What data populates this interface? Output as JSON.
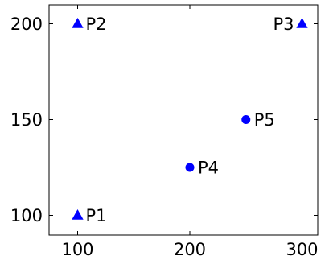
{
  "chart_data": {
    "type": "scatter",
    "title": "",
    "xlabel": "",
    "ylabel": "",
    "xlim": [
      75,
      325
    ],
    "ylim": [
      90,
      210
    ],
    "x_ticks": [
      100,
      200,
      300
    ],
    "y_ticks": [
      100,
      150,
      200
    ],
    "x_tick_labels": [
      "100",
      "200",
      "300"
    ],
    "y_tick_labels": [
      "100",
      "150",
      "200"
    ],
    "grid": false,
    "legend": "none",
    "marker_color": "#0000ff",
    "points": [
      {
        "label": "P1",
        "x": 100,
        "y": 100,
        "marker": "triangle",
        "label_side": "right"
      },
      {
        "label": "P2",
        "x": 100,
        "y": 200,
        "marker": "triangle",
        "label_side": "right"
      },
      {
        "label": "P3",
        "x": 300,
        "y": 200,
        "marker": "triangle",
        "label_side": "left"
      },
      {
        "label": "P4",
        "x": 200,
        "y": 125,
        "marker": "circle",
        "label_side": "right"
      },
      {
        "label": "P5",
        "x": 250,
        "y": 150,
        "marker": "circle",
        "label_side": "right"
      }
    ]
  }
}
